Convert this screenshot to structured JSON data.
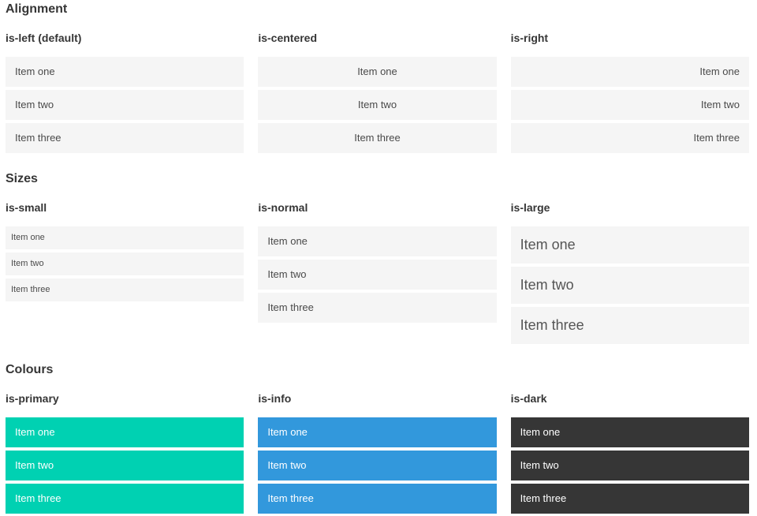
{
  "colors": {
    "page-bg": "#ffffff",
    "item-bg": "#f5f5f5",
    "item-text": "#4a4a4a",
    "heading-text": "#363636",
    "primary": "#00d1b2",
    "info": "#3298dc",
    "dark": "#363636",
    "on-color-text": "#ffffff"
  },
  "sections": [
    {
      "title": "Alignment",
      "columns": [
        {
          "label": "is-left (default)",
          "items": [
            "Item one",
            "Item two",
            "Item three"
          ]
        },
        {
          "label": "is-centered",
          "items": [
            "Item one",
            "Item two",
            "Item three"
          ]
        },
        {
          "label": "is-right",
          "items": [
            "Item one",
            "Item two",
            "Item three"
          ]
        }
      ]
    },
    {
      "title": "Sizes",
      "columns": [
        {
          "label": "is-small",
          "items": [
            "Item one",
            "Item two",
            "Item three"
          ]
        },
        {
          "label": "is-normal",
          "items": [
            "Item one",
            "Item two",
            "Item three"
          ]
        },
        {
          "label": "is-large",
          "items": [
            "Item one",
            "Item two",
            "Item three"
          ]
        }
      ]
    },
    {
      "title": "Colours",
      "columns": [
        {
          "label": "is-primary",
          "items": [
            "Item one",
            "Item two",
            "Item three"
          ]
        },
        {
          "label": "is-info",
          "items": [
            "Item one",
            "Item two",
            "Item three"
          ]
        },
        {
          "label": "is-dark",
          "items": [
            "Item one",
            "Item two",
            "Item three"
          ]
        }
      ]
    }
  ]
}
